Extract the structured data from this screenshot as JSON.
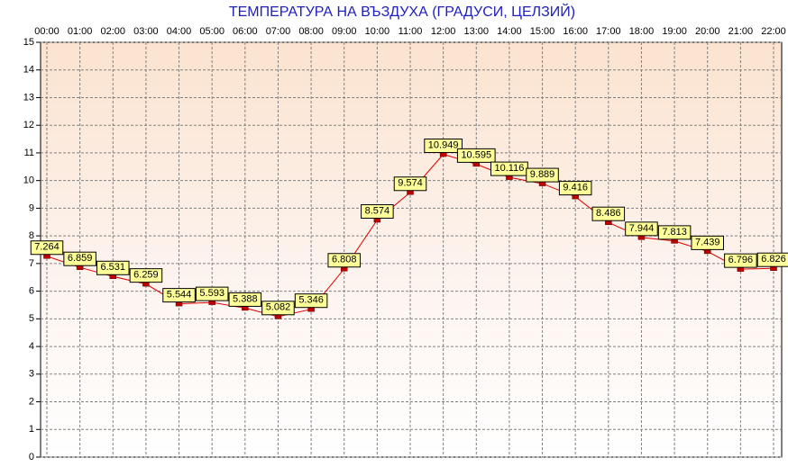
{
  "chart_data": {
    "type": "line",
    "title": "ТЕМПЕРАТУРА НА ВЪЗДУХА  (ГРАДУСИ, ЦЕЛЗИЙ)",
    "categories": [
      "00:00",
      "01:00",
      "02:00",
      "03:00",
      "04:00",
      "05:00",
      "06:00",
      "07:00",
      "08:00",
      "09:00",
      "10:00",
      "11:00",
      "12:00",
      "13:00",
      "14:00",
      "15:00",
      "16:00",
      "17:00",
      "18:00",
      "19:00",
      "20:00",
      "21:00",
      "22:00"
    ],
    "values": [
      7.264,
      6.859,
      6.531,
      6.259,
      5.544,
      5.593,
      5.388,
      5.082,
      5.346,
      6.808,
      8.574,
      9.574,
      10.949,
      10.595,
      10.116,
      9.889,
      9.416,
      8.486,
      7.944,
      7.813,
      7.439,
      6.796,
      6.826
    ],
    "color": "#e00000",
    "ylim": [
      0,
      15
    ],
    "yticks": [
      0,
      1,
      2,
      3,
      4,
      5,
      6,
      7,
      8,
      9,
      10,
      11,
      12,
      13,
      14,
      15
    ],
    "grid": true
  }
}
